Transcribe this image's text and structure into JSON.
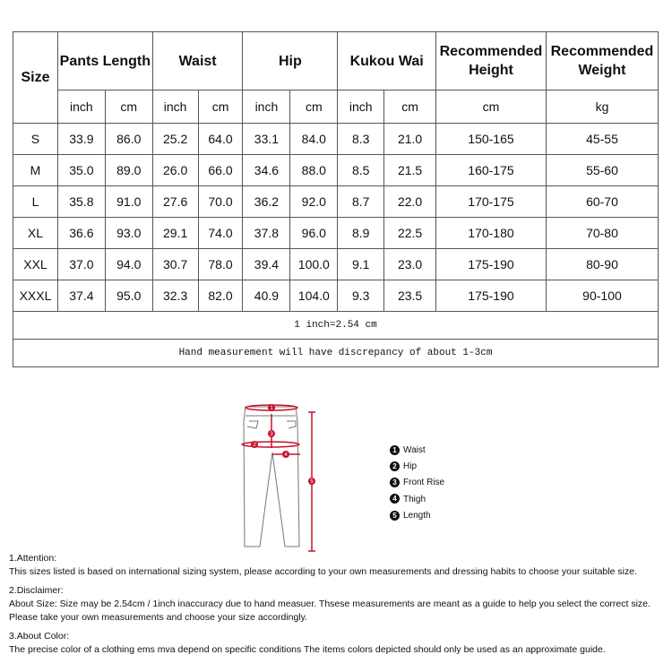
{
  "table": {
    "headers": {
      "size": "Size",
      "pants_length": "Pants Length",
      "waist": "Waist",
      "hip": "Hip",
      "kukou": "Kukou Wai",
      "height": "Recommended Height",
      "weight": "Recommended Weight"
    },
    "units": [
      "inch",
      "cm",
      "inch",
      "cm",
      "inch",
      "cm",
      "inch",
      "cm",
      "cm",
      "kg"
    ],
    "rows": [
      [
        "S",
        "33.9",
        "86.0",
        "25.2",
        "64.0",
        "33.1",
        "84.0",
        "8.3",
        "21.0",
        "150-165",
        "45-55"
      ],
      [
        "M",
        "35.0",
        "89.0",
        "26.0",
        "66.0",
        "34.6",
        "88.0",
        "8.5",
        "21.5",
        "160-175",
        "55-60"
      ],
      [
        "L",
        "35.8",
        "91.0",
        "27.6",
        "70.0",
        "36.2",
        "92.0",
        "8.7",
        "22.0",
        "170-175",
        "60-70"
      ],
      [
        "XL",
        "36.6",
        "93.0",
        "29.1",
        "74.0",
        "37.8",
        "96.0",
        "8.9",
        "22.5",
        "170-180",
        "70-80"
      ],
      [
        "XXL",
        "37.0",
        "94.0",
        "30.7",
        "78.0",
        "39.4",
        "100.0",
        "9.1",
        "23.0",
        "175-190",
        "80-90"
      ],
      [
        "XXXL",
        "37.4",
        "95.0",
        "32.3",
        "82.0",
        "40.9",
        "104.0",
        "9.3",
        "23.5",
        "175-190",
        "90-100"
      ]
    ],
    "note1": "1 inch=2.54 cm",
    "note2": "Hand measurement will have discrepancy of about 1-3cm"
  },
  "accent": "#c8102e",
  "legend": [
    {
      "n": "1",
      "label": "Waist"
    },
    {
      "n": "2",
      "label": "Hip"
    },
    {
      "n": "3",
      "label": "Front Rise"
    },
    {
      "n": "4",
      "label": "Thigh"
    },
    {
      "n": "5",
      "label": "Length"
    }
  ],
  "notes": [
    {
      "title": "1.Attention:",
      "text": "This sizes listed is based on international sizing system, please according to your own measurements and dressing habits to choose your suitable size."
    },
    {
      "title": "2.Disclaimer:",
      "text": "About Size: Size may be 2.54cm / 1inch inaccuracy due to hand measuer. Thsese measurements are meant as a guide to help you select the correct size. Please take your own measurements and choose your size accordingly."
    },
    {
      "title": "3.About Color:",
      "text": "The precise color of a clothing ems mva depend on specific conditions The items colors depicted should only be used as an approximate guide."
    }
  ]
}
